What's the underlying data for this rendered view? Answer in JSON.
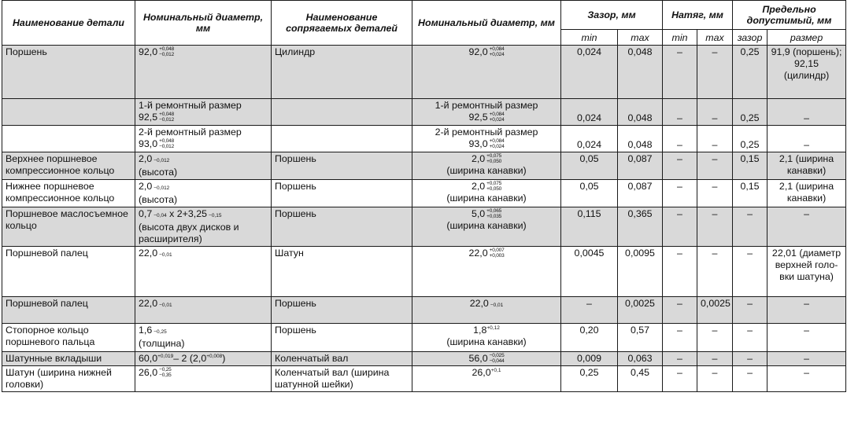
{
  "headers": {
    "part_name": "Наименование детали",
    "nominal_diameter": "Номинальный диаметр, мм",
    "mating_parts": "Наименование сопрягаемых деталей",
    "mating_nominal_diameter": "Номинальный диаметр, мм",
    "clearance": "Зазор, мм",
    "interference": "Натяг, мм",
    "limit": "Предельно допустимый, мм",
    "min": "min",
    "max": "max",
    "limit_clearance": "зазор",
    "limit_size": "размер"
  },
  "rows": [
    {
      "part": "Поршень",
      "nom_main": "92,0",
      "nom_tol_up": "+0,048",
      "nom_tol_low": "−0,012",
      "mate": "Цилиндр",
      "mate_main": "92,0",
      "mate_tol_up": "+0,084",
      "mate_tol_low": "+0,024",
      "cmin": "0,024",
      "cmax": "0,048",
      "imin": "–",
      "imax": "–",
      "lclear": "0,25",
      "lsize": "91,9 (поршень); 92,15 (цилиндр)"
    },
    {
      "part": "",
      "nom_label": "1-й ремонтный размер",
      "nom_main": "92,5",
      "nom_tol_up": "+0,048",
      "nom_tol_low": "−0,012",
      "mate": "",
      "mate_label": "1-й ремонтный размер",
      "mate_main": "92,5",
      "mate_tol_up": "+0,084",
      "mate_tol_low": "+0,024",
      "cmin": "0,024",
      "cmax": "0,048",
      "imin": "–",
      "imax": "–",
      "lclear": "0,25",
      "lsize": "–"
    },
    {
      "part": "",
      "nom_label": "2-й ремонтный размер",
      "nom_main": "93,0",
      "nom_tol_up": "+0,048",
      "nom_tol_low": "−0,012",
      "mate": "",
      "mate_label": "2-й ремонтный размер",
      "mate_main": "93,0",
      "mate_tol_up": "+0,084",
      "mate_tol_low": "+0,024",
      "cmin": "0,024",
      "cmax": "0,048",
      "imin": "–",
      "imax": "–",
      "lclear": "0,25",
      "lsize": "–"
    },
    {
      "part": "Верхнее поршневое компрессионное кольцо",
      "nom_main": "2,0",
      "nom_tol": "−0,012",
      "nom_note": "(высота)",
      "mate": "Поршень",
      "mate_main": "2,0",
      "mate_tol_up": "+0,075",
      "mate_tol_low": "+0,050",
      "mate_note": "(ширина канавки)",
      "cmin": "0,05",
      "cmax": "0,087",
      "imin": "–",
      "imax": "–",
      "lclear": "0,15",
      "lsize": "2,1 (ширина канавки)"
    },
    {
      "part": "Нижнее поршневое компрессионное кольцо",
      "nom_main": "2,0",
      "nom_tol": "−0,012",
      "nom_note": "(высота)",
      "mate": "Поршень",
      "mate_main": "2,0",
      "mate_tol_up": "+0,075",
      "mate_tol_low": "+0,050",
      "mate_note": "(ширина канавки)",
      "cmin": "0,05",
      "cmax": "0,087",
      "imin": "–",
      "imax": "–",
      "lclear": "0,15",
      "lsize": "2,1 (ширина канавки)"
    },
    {
      "part": "Поршневое маслосъемное кольцо",
      "nom_a": "0,7",
      "nom_a_tol": "−0,04",
      "nom_b": "х 2+3,25",
      "nom_b_tol": "−0,15",
      "nom_note": "(высота двух дисков и расширителя)",
      "mate": "Поршень",
      "mate_main": "5,0",
      "mate_tol_up": "+0,065",
      "mate_tol_low": "+0,035",
      "mate_note": "(ширина канавки)",
      "cmin": "0,115",
      "cmax": "0,365",
      "imin": "–",
      "imax": "–",
      "lclear": "–",
      "lsize": "–"
    },
    {
      "part": "Поршневой палец",
      "nom_main": "22,0",
      "nom_tol": "−0,01",
      "mate": "Шатун",
      "mate_main": "22,0",
      "mate_tol_up": "+0,007",
      "mate_tol_low": "+0,003",
      "cmin": "0,0045",
      "cmax": "0,0095",
      "imin": "–",
      "imax": "–",
      "lclear": "–",
      "lsize": "22,01 (диаметр верхней голо-вки шатуна)"
    },
    {
      "part": "Поршневой палец",
      "nom_main": "22,0",
      "nom_tol": "−0,01",
      "mate": "Поршень",
      "mate_main": "22,0",
      "mate_tol": "−0,01",
      "cmin": "–",
      "cmax": "0,0025",
      "imin": "–",
      "imax": "0,0025",
      "lclear": "–",
      "lsize": "–"
    },
    {
      "part": "Стопорное кольцо поршневого пальца",
      "nom_main": "1,6",
      "nom_tol": "−0,25",
      "nom_note": "(толщина)",
      "mate": "Поршень",
      "mate_main": "1,8",
      "mate_tol_sup": "+0,12",
      "mate_note": "(ширина канавки)",
      "cmin": "0,20",
      "cmax": "0,57",
      "imin": "–",
      "imax": "–",
      "lclear": "–",
      "lsize": "–"
    },
    {
      "part": "Шатунные вкладыши",
      "nom_a": "60,0",
      "nom_a_sup": "+0,019",
      "nom_b": "– 2 (2,0",
      "nom_b_sup": "+0,008",
      "nom_end": ")",
      "mate": "Коленчатый вал",
      "mate_main": "56,0",
      "mate_tol_up": "−0,025",
      "mate_tol_low": "−0,044",
      "cmin": "0,009",
      "cmax": "0,063",
      "imin": "–",
      "imax": "–",
      "lclear": "–",
      "lsize": "–"
    },
    {
      "part": "Шатун (ширина нижней головки)",
      "nom_main": "26,0",
      "nom_tol_up": "−0,25",
      "nom_tol_low": "−0,35",
      "mate": "Коленчатый вал (ширина шатунной шейки)",
      "mate_main": "26,0",
      "mate_tol_sup": "+0,1",
      "cmin": "0,25",
      "cmax": "0,45",
      "imin": "–",
      "imax": "–",
      "lclear": "–",
      "lsize": "–"
    }
  ]
}
